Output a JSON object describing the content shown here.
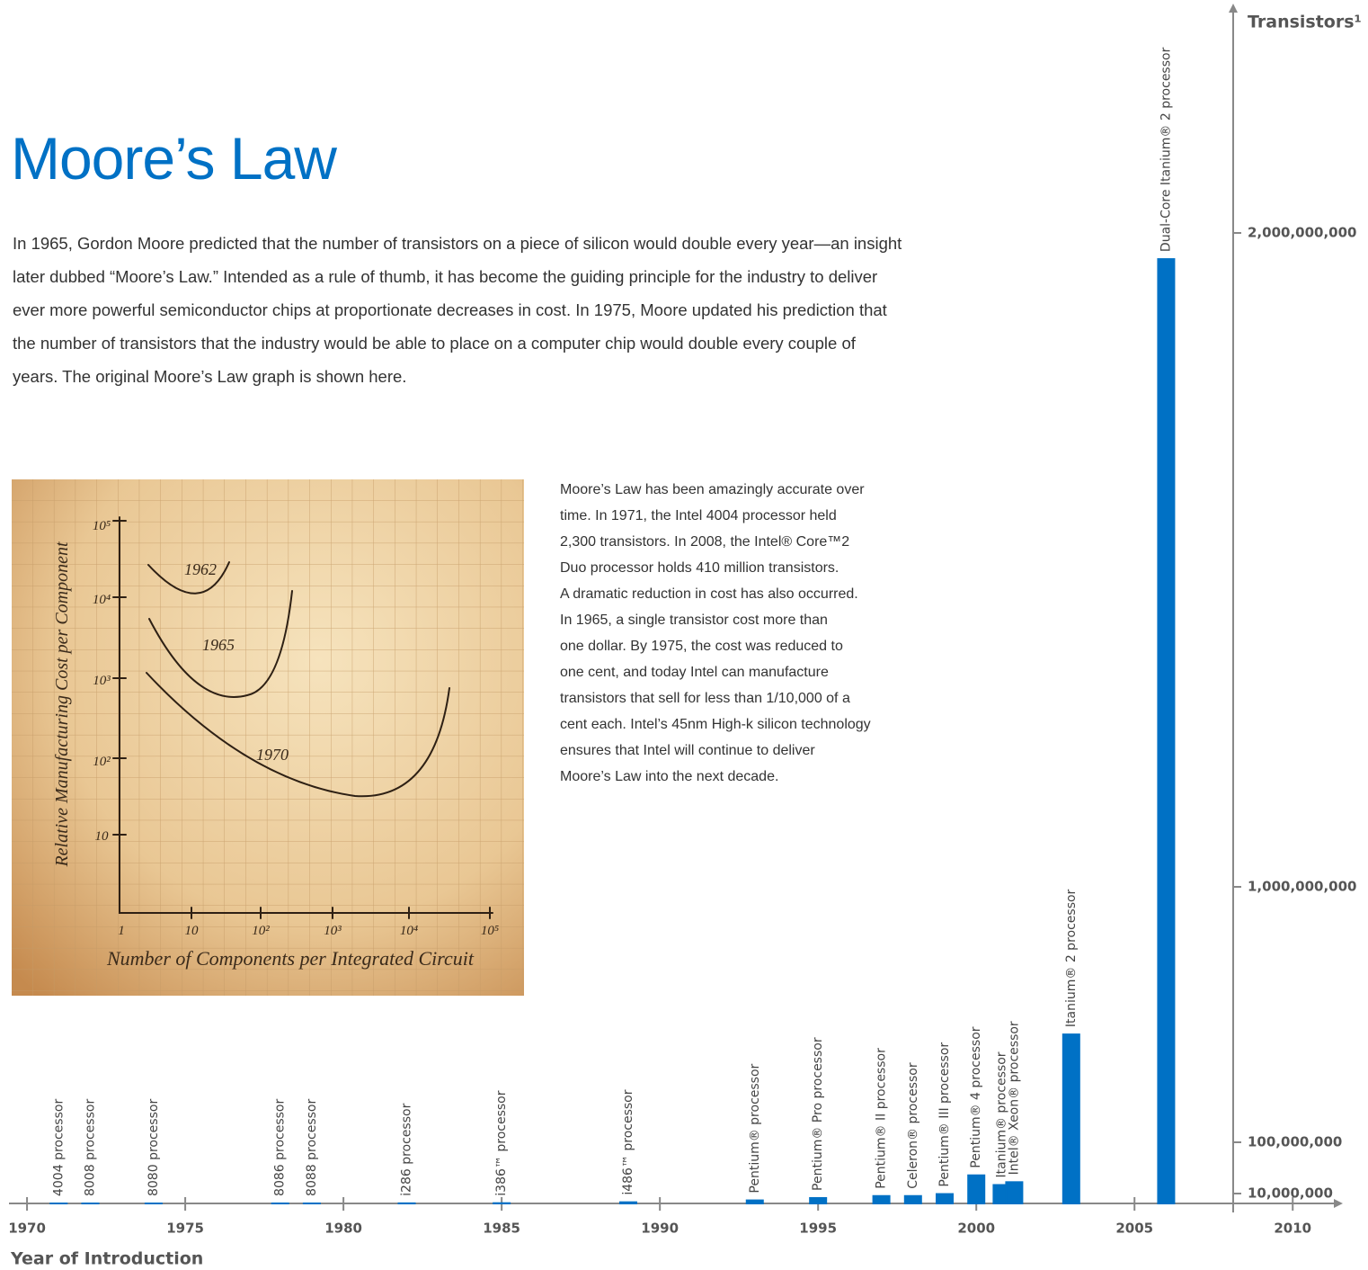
{
  "header": {
    "title": "Moore’s Law"
  },
  "intro": [
    "In 1965, Gordon Moore predicted that the number of transistors on a piece of silicon would double every year—an insight",
    "later dubbed “Moore’s Law.” Intended as a rule of thumb, it has become the guiding principle for the industry to deliver",
    "ever more powerful semiconductor chips at proportionate decreases in cost. In 1975, Moore updated his prediction that",
    "the number of transistors that the industry would be able to place on a computer chip would double every couple of",
    "years. The original Moore’s Law graph is shown here."
  ],
  "caption": [
    "Moore’s Law has been amazingly accurate over",
    "time. In 1971, the Intel 4004 processor held",
    "2,300 transistors. In 2008, the Intel® Core™2",
    "Duo processor holds 410 million transistors.",
    "A dramatic reduction in cost has also occurred.",
    "In 1965, a single transistor cost more than",
    "one dollar. By 1975, the cost was reduced to",
    "one cent, and today Intel can manufacture",
    "transistors that sell for less than 1/10,000 of a",
    "cent each. Intel’s 45nm High-k silicon technology",
    "ensures that Intel will continue to deliver",
    "Moore’s Law into the next decade."
  ],
  "figure": {
    "y_label": "Relative Manufacturing Cost per Component",
    "x_label": "Number of Components per Integrated Circuit",
    "y_tick_labels": [
      "10⁵",
      "10⁴",
      "10³",
      "10²",
      "10"
    ],
    "x_tick_labels": [
      "1",
      "10",
      "10²",
      "10³",
      "10⁴",
      "10⁵"
    ],
    "curve_labels": [
      "1962",
      "1965",
      "1970"
    ]
  },
  "chart_data": {
    "type": "bar",
    "x_label": "Year of Introduction",
    "y_label": "Transistors¹",
    "color": "#0071c5",
    "categories": [
      "4004 processor",
      "8008 processor",
      "8080 processor",
      "8086 processor",
      "8088 processor",
      "i286 processor",
      "i386™ processor",
      "i486™ processor",
      "Pentium® processor",
      "Pentium® Pro processor",
      "Pentium® II processor",
      "Celeron® processor",
      "Pentium® III processor",
      "Pentium® 4 processor",
      "Itanium® processor",
      "Intel® Xeon® processor",
      "Itanium® 2 processor",
      "Dual-Core Itanium® 2 processor"
    ],
    "x": [
      1971,
      1972,
      1974,
      1978,
      1979,
      1982,
      1985,
      1989,
      1993,
      1995,
      1997,
      1998,
      1999,
      2000,
      2001,
      2001,
      2003,
      2006
    ],
    "values": [
      2300,
      3500,
      4500,
      29000,
      29000,
      134000,
      275000,
      1200000,
      3100000,
      5500000,
      7500000,
      7500000,
      9500000,
      42000000,
      25000000,
      30000000,
      480000000,
      1960000000
    ],
    "xlim": [
      1969.43,
      2011.47
    ],
    "xticks": [
      1970,
      1975,
      1980,
      1985,
      1990,
      1995,
      2000,
      2005,
      2010
    ],
    "ylim": [
      0,
      2340000000
    ],
    "yticks": [
      {
        "value": 10000000,
        "label": "10,000,000"
      },
      {
        "value": 100000000,
        "label": "100,000,000"
      },
      {
        "value": 1000000000,
        "label": "1,000,000,000"
      },
      {
        "value": 2000000000,
        "label": "2,000,000,000"
      }
    ]
  }
}
